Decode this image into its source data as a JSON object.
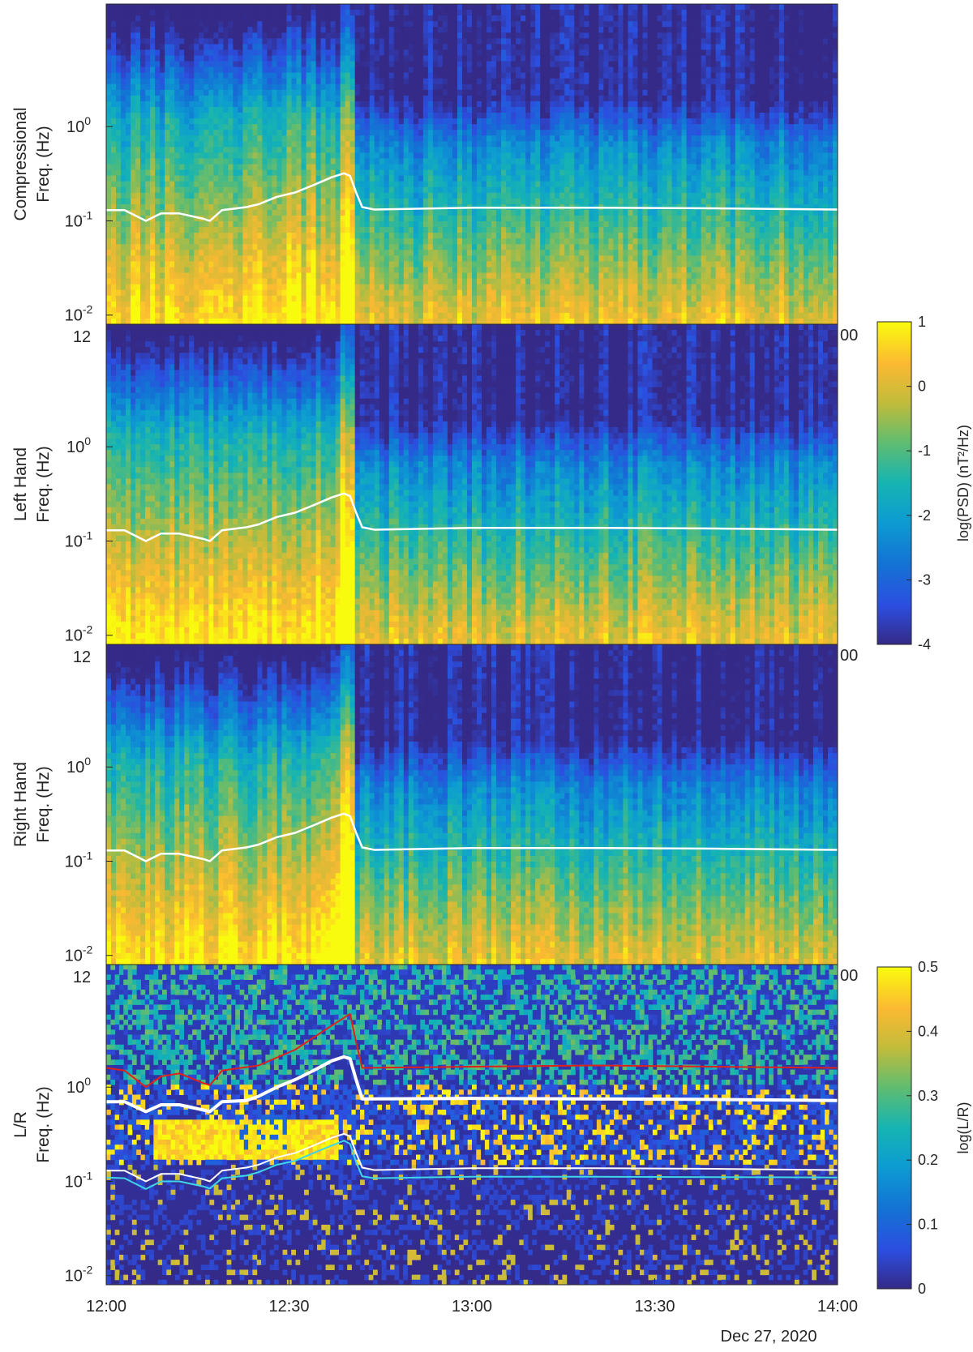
{
  "chart_data": {
    "type": "heatmap",
    "date_label": "Dec 27, 2020",
    "x_ticks": [
      "12:00",
      "12:30",
      "13:00",
      "13:30",
      "14:00"
    ],
    "x_range_minutes": [
      0,
      120
    ],
    "y_scale": "log",
    "y_range_hz": [
      0.008,
      20
    ],
    "y_ticks_hz": [
      0.01,
      0.1,
      1
    ],
    "y_tick_labels": [
      "10^-2",
      "10^-1",
      "10^0"
    ],
    "clipped_tick_label_top": "12",
    "clipped_tick_label_right": "00",
    "shock_time_minutes": 41,
    "panels": [
      {
        "id": "compressional",
        "ylabel_line1": "Compressional",
        "ylabel_line2": "Freq. (Hz)",
        "colorbar": "psd",
        "white_curve_hz_pre": [
          [
            0,
            0.13
          ],
          [
            3,
            0.13
          ],
          [
            6.5,
            0.1
          ],
          [
            9,
            0.12
          ],
          [
            12,
            0.12
          ],
          [
            16,
            0.105
          ],
          [
            17,
            0.1
          ],
          [
            19,
            0.13
          ],
          [
            23,
            0.14
          ],
          [
            25,
            0.15
          ],
          [
            28,
            0.18
          ],
          [
            31,
            0.2
          ],
          [
            34,
            0.24
          ],
          [
            37,
            0.29
          ],
          [
            39,
            0.32
          ],
          [
            40,
            0.3
          ],
          [
            41,
            0.2
          ],
          [
            42,
            0.14
          ],
          [
            44,
            0.132
          ],
          [
            60,
            0.138
          ],
          [
            80,
            0.138
          ],
          [
            100,
            0.136
          ],
          [
            120,
            0.132
          ]
        ]
      },
      {
        "id": "left-hand",
        "ylabel_line1": "Left Hand",
        "ylabel_line2": "Freq. (Hz)",
        "colorbar": "psd",
        "white_curve_hz_pre": [
          [
            0,
            0.13
          ],
          [
            3,
            0.13
          ],
          [
            6.5,
            0.1
          ],
          [
            9,
            0.12
          ],
          [
            12,
            0.12
          ],
          [
            16,
            0.105
          ],
          [
            17,
            0.1
          ],
          [
            19,
            0.13
          ],
          [
            23,
            0.14
          ],
          [
            25,
            0.15
          ],
          [
            28,
            0.18
          ],
          [
            31,
            0.2
          ],
          [
            34,
            0.24
          ],
          [
            37,
            0.29
          ],
          [
            39,
            0.32
          ],
          [
            40,
            0.3
          ],
          [
            41,
            0.2
          ],
          [
            42,
            0.14
          ],
          [
            44,
            0.132
          ],
          [
            60,
            0.138
          ],
          [
            80,
            0.138
          ],
          [
            100,
            0.136
          ],
          [
            120,
            0.132
          ]
        ]
      },
      {
        "id": "right-hand",
        "ylabel_line1": "Right Hand",
        "ylabel_line2": "Freq. (Hz)",
        "colorbar": "psd",
        "white_curve_hz_pre": [
          [
            0,
            0.13
          ],
          [
            3,
            0.13
          ],
          [
            6.5,
            0.1
          ],
          [
            9,
            0.12
          ],
          [
            12,
            0.12
          ],
          [
            16,
            0.105
          ],
          [
            17,
            0.1
          ],
          [
            19,
            0.13
          ],
          [
            23,
            0.14
          ],
          [
            25,
            0.15
          ],
          [
            28,
            0.18
          ],
          [
            31,
            0.2
          ],
          [
            34,
            0.24
          ],
          [
            37,
            0.29
          ],
          [
            39,
            0.32
          ],
          [
            40,
            0.3
          ],
          [
            41,
            0.2
          ],
          [
            42,
            0.14
          ],
          [
            44,
            0.132
          ],
          [
            60,
            0.138
          ],
          [
            80,
            0.138
          ],
          [
            100,
            0.136
          ],
          [
            120,
            0.132
          ]
        ]
      },
      {
        "id": "l-over-r",
        "ylabel_line1": "L/R",
        "ylabel_line2": "Freq. (Hz)",
        "colorbar": "lr",
        "lines": [
          {
            "color": "#e0201b",
            "width": 2,
            "points": [
              [
                0,
                1.6
              ],
              [
                3,
                1.5
              ],
              [
                6.5,
                1.0
              ],
              [
                9,
                1.3
              ],
              [
                12,
                1.4
              ],
              [
                16,
                1.1
              ],
              [
                17,
                1.05
              ],
              [
                19,
                1.5
              ],
              [
                25,
                1.7
              ],
              [
                31,
                2.5
              ],
              [
                37,
                4.5
              ],
              [
                40,
                6.0
              ],
              [
                41,
                3.0
              ],
              [
                42,
                1.6
              ],
              [
                60,
                1.65
              ],
              [
                80,
                1.7
              ],
              [
                100,
                1.65
              ],
              [
                120,
                1.6
              ]
            ]
          },
          {
            "color": "#ffffff",
            "width": 4,
            "points": [
              [
                0,
                0.7
              ],
              [
                3,
                0.7
              ],
              [
                6.5,
                0.55
              ],
              [
                9,
                0.65
              ],
              [
                12,
                0.65
              ],
              [
                16,
                0.57
              ],
              [
                17,
                0.55
              ],
              [
                19,
                0.7
              ],
              [
                23,
                0.72
              ],
              [
                25,
                0.8
              ],
              [
                28,
                1.0
              ],
              [
                31,
                1.2
              ],
              [
                34,
                1.5
              ],
              [
                37,
                1.9
              ],
              [
                39,
                2.1
              ],
              [
                40,
                2.0
              ],
              [
                41,
                1.2
              ],
              [
                42,
                0.75
              ],
              [
                60,
                0.76
              ],
              [
                80,
                0.75
              ],
              [
                100,
                0.74
              ],
              [
                120,
                0.72
              ]
            ]
          },
          {
            "color": "#ffffff",
            "width": 2,
            "points": [
              [
                0,
                0.13
              ],
              [
                3,
                0.13
              ],
              [
                6.5,
                0.1
              ],
              [
                9,
                0.12
              ],
              [
                12,
                0.12
              ],
              [
                16,
                0.105
              ],
              [
                17,
                0.1
              ],
              [
                19,
                0.13
              ],
              [
                23,
                0.14
              ],
              [
                25,
                0.15
              ],
              [
                28,
                0.18
              ],
              [
                31,
                0.2
              ],
              [
                34,
                0.24
              ],
              [
                37,
                0.29
              ],
              [
                39,
                0.32
              ],
              [
                40,
                0.3
              ],
              [
                41,
                0.2
              ],
              [
                42,
                0.14
              ],
              [
                44,
                0.132
              ],
              [
                60,
                0.138
              ],
              [
                80,
                0.138
              ],
              [
                100,
                0.136
              ],
              [
                120,
                0.132
              ]
            ]
          },
          {
            "color": "#3fd6e8",
            "width": 2,
            "points": [
              [
                0,
                0.11
              ],
              [
                3,
                0.108
              ],
              [
                6.5,
                0.083
              ],
              [
                9,
                0.1
              ],
              [
                12,
                0.1
              ],
              [
                16,
                0.088
              ],
              [
                17,
                0.084
              ],
              [
                19,
                0.108
              ],
              [
                23,
                0.115
              ],
              [
                25,
                0.125
              ],
              [
                28,
                0.15
              ],
              [
                31,
                0.165
              ],
              [
                34,
                0.2
              ],
              [
                37,
                0.24
              ],
              [
                39,
                0.27
              ],
              [
                40,
                0.25
              ],
              [
                41,
                0.16
              ],
              [
                42,
                0.113
              ],
              [
                44,
                0.108
              ],
              [
                60,
                0.112
              ],
              [
                80,
                0.112
              ],
              [
                100,
                0.111
              ],
              [
                120,
                0.11
              ]
            ]
          }
        ]
      }
    ],
    "colorbars": {
      "psd": {
        "label": "log(PSD) (nT²/Hz)",
        "range": [
          -4,
          1
        ],
        "ticks": [
          "1",
          "0",
          "-1",
          "-2",
          "-3",
          "-4"
        ]
      },
      "lr": {
        "label": "log(L/R)",
        "range": [
          0,
          0.5
        ],
        "ticks": [
          "0.5",
          "0.4",
          "0.3",
          "0.2",
          "0.1",
          "0"
        ]
      }
    }
  }
}
